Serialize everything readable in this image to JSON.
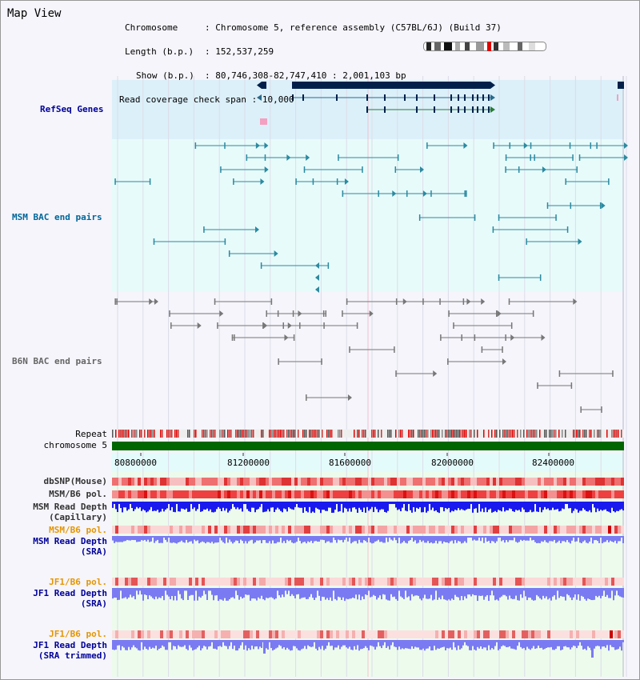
{
  "view": {
    "title": "Map View",
    "info": {
      "chromosome_key": "Chromosome",
      "chromosome_value": "Chromosome 5, reference assembly (C57BL/6J) (Build 37)",
      "length_key": "Length (b.p.)",
      "length_value": "152,537,259",
      "show_key": "Show (b.p.)",
      "show_value": "80,746,308-82,747,410 : 2,001,103 bp",
      "span_key": "Read coverage check span",
      "span_value": "10,000"
    }
  },
  "tracks": {
    "refseq": "RefSeq Genes",
    "msm_bac": "MSM BAC end pairs",
    "b6n_bac": "B6N BAC end pairs",
    "repeat": "Repeat",
    "chromosome": "chromosome 5",
    "dbsnp": "dbSNP(Mouse)",
    "msm_b6_pol": "MSM/B6 pol.",
    "msm_read_depth_cap_1": "MSM Read Depth",
    "msm_read_depth_cap_2": "(Capillary)",
    "msm_b6_pol_sra": "MSM/B6 pol.",
    "msm_read_depth_sra_1": "MSM Read Depth",
    "msm_read_depth_sra_2": "(SRA)",
    "jf1_b6_pol": "JF1/B6 pol.",
    "jf1_read_depth_1": "JF1 Read Depth",
    "jf1_read_depth_2": "(SRA)",
    "jf1_b6_pol_trim": "JF1/B6 pol.",
    "jf1_read_depth_trim_1": "JF1 Read Depth",
    "jf1_read_depth_trim_2": "(SRA trimmed)"
  },
  "ruler": {
    "ticks": [
      "80800000",
      "81200000",
      "81600000",
      "82000000",
      "82400000"
    ]
  },
  "colors": {
    "refseq_bg": "#dcf0fa",
    "msm_bg": "#e8fbfb",
    "b6n_bg": "#f5f5fb",
    "ruler_bg": "#e4fbfb",
    "depth_bg": "#edfbed",
    "refseq_label": "#000099",
    "msm_label": "#006699",
    "b6n_label": "#666666",
    "gold_label": "#e69500",
    "blue_label": "#000099",
    "gene_dark": "#00204a",
    "msm_line": "#2a8aa0",
    "b6n_line": "#777777",
    "chromosome_bar": "#006600",
    "depth_dark": "#1a1aee",
    "depth_light": "#7a7af2"
  }
}
